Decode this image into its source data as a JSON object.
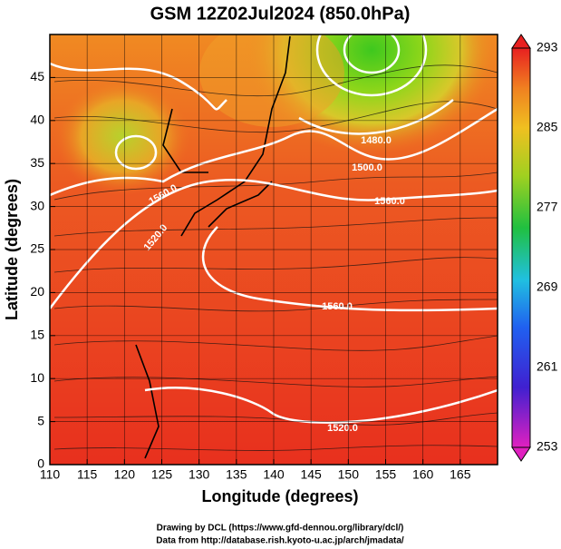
{
  "chart_data": {
    "type": "map",
    "title": "GSM 12Z02Jul2024 (850.0hPa)",
    "xlabel": "Longitude (degrees)",
    "ylabel": "Latitude  (degrees)",
    "xlim": [
      110,
      170
    ],
    "xticks": [
      110,
      115,
      120,
      125,
      130,
      135,
      140,
      145,
      150,
      155,
      160,
      165
    ],
    "ylim": [
      0,
      50
    ],
    "yticks": [
      0,
      5,
      10,
      15,
      20,
      25,
      30,
      35,
      40,
      45
    ],
    "grid": true,
    "colorbar": {
      "lim": [
        253,
        293
      ],
      "ticks": [
        253,
        261,
        269,
        277,
        285,
        293
      ]
    },
    "contour_labels": [
      "1480.0",
      "1500.0",
      "1560.0",
      "1560.0",
      "1520.0",
      "1560.0",
      "1520.0"
    ],
    "credits": [
      "Drawing by DCL (https://www.gfd-dennou.org/library/dcl/)",
      "Data from http://database.rish.kyoto-u.ac.jp/arch/jmadata/"
    ]
  }
}
